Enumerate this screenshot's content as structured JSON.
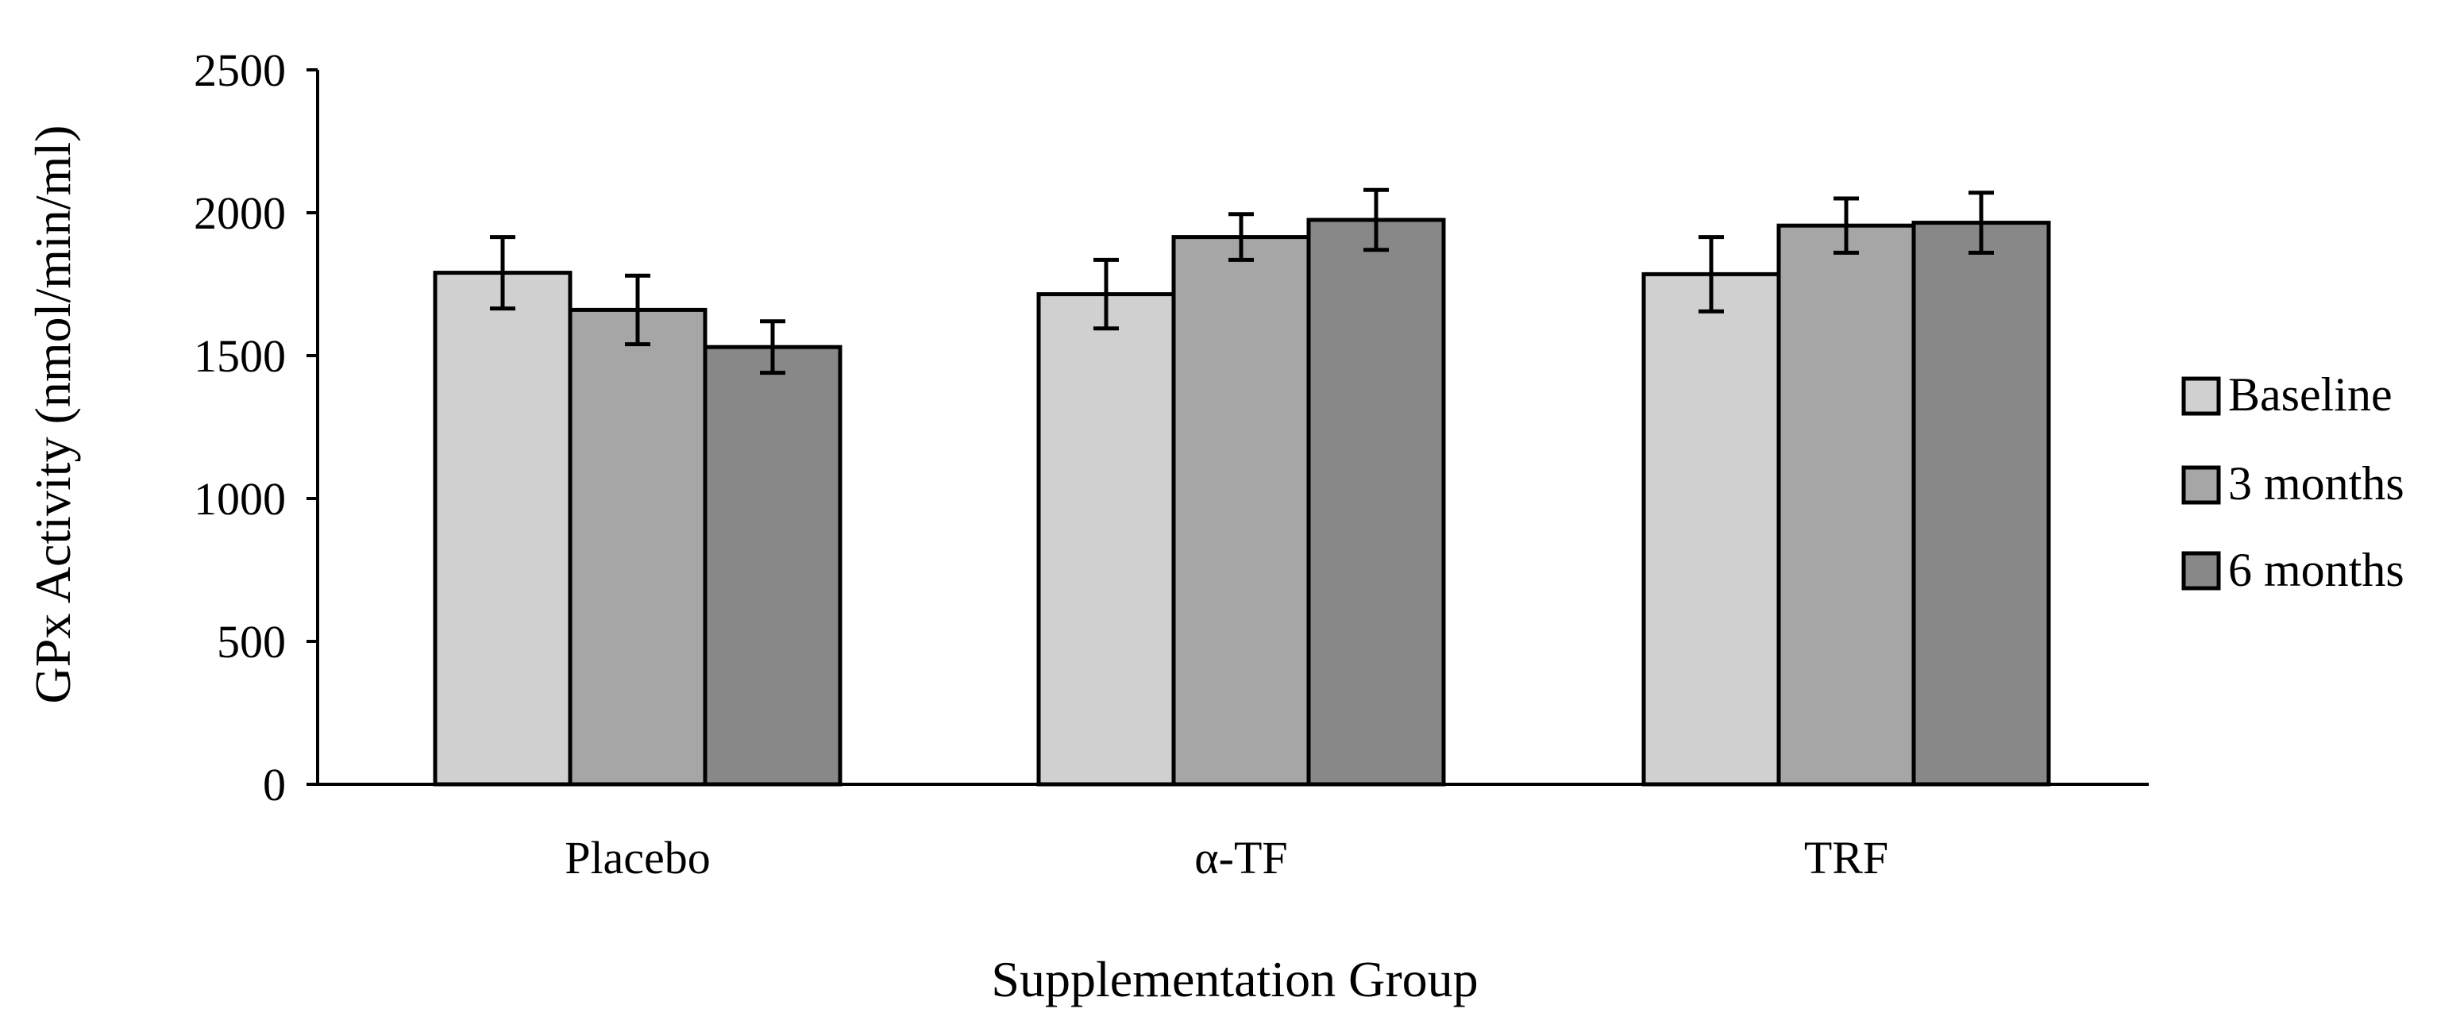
{
  "chart_data": {
    "type": "bar",
    "title": "",
    "xlabel": "Supplementation Group",
    "ylabel": "GPx Activity (nmol/min/ml)",
    "categories": [
      "Placebo",
      "α-TF",
      "TRF"
    ],
    "ylim": [
      0,
      2500
    ],
    "yticks": [
      0,
      500,
      1000,
      1500,
      2000,
      2500
    ],
    "ytick_labels": [
      "0",
      "500",
      "1000",
      "1500",
      "2000",
      "2500"
    ],
    "grid": false,
    "legend_position": "right",
    "series": [
      {
        "name": "Baseline",
        "color": "#d0d0d0",
        "values": [
          1790,
          1715,
          1785
        ],
        "errors": [
          125,
          120,
          130
        ]
      },
      {
        "name": "3 months",
        "color": "#a6a6a6",
        "values": [
          1660,
          1915,
          1955
        ],
        "errors": [
          120,
          80,
          95
        ]
      },
      {
        "name": "6 months",
        "color": "#888888",
        "values": [
          1530,
          1975,
          1965
        ],
        "errors": [
          90,
          105,
          105
        ]
      }
    ]
  }
}
